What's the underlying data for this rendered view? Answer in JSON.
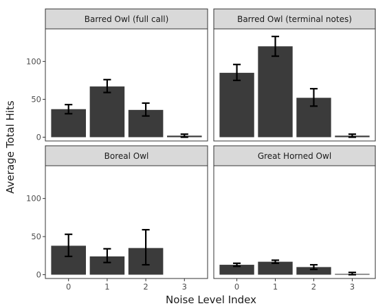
{
  "chart_data": {
    "type": "bar",
    "xlabel": "Noise Level Index",
    "ylabel": "Average Total Hits",
    "categories": [
      "0",
      "1",
      "2",
      "3"
    ],
    "ylim": [
      -5,
      143
    ],
    "yticks": [
      0,
      50,
      100
    ],
    "grid": false,
    "bar_color": "#3b3b3b",
    "panels": [
      {
        "title": "Barred Owl (full call)",
        "values": [
          37,
          67,
          36,
          2
        ],
        "error_low": [
          31,
          59,
          28,
          0
        ],
        "error_high": [
          43,
          76,
          45,
          4
        ]
      },
      {
        "title": "Barred Owl (terminal notes)",
        "values": [
          85,
          120,
          52,
          2
        ],
        "error_low": [
          75,
          107,
          41,
          0
        ],
        "error_high": [
          96,
          133,
          64,
          4
        ]
      },
      {
        "title": "Boreal Owl",
        "values": [
          38,
          24,
          35,
          null
        ],
        "error_low": [
          24,
          16,
          13,
          null
        ],
        "error_high": [
          53,
          34,
          59,
          null
        ]
      },
      {
        "title": "Great Horned Owl",
        "values": [
          13,
          17,
          10,
          1
        ],
        "error_low": [
          11,
          15,
          7,
          0
        ],
        "error_high": [
          15,
          19,
          13,
          3
        ]
      }
    ]
  }
}
